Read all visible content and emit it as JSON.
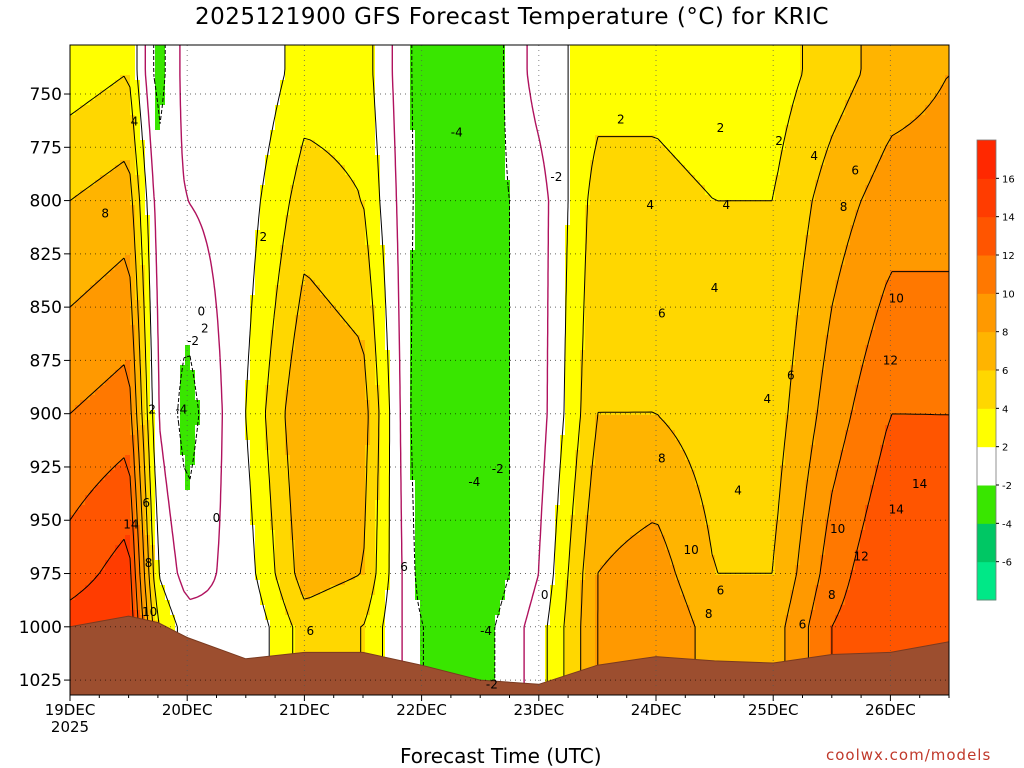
{
  "chart_data": {
    "type": "heatmap",
    "title": "2025121900 GFS Forecast Temperature (°C) for KRIC",
    "xlabel": "Forecast Time (UTC)",
    "ylabel": "",
    "x_ticks": [
      "19DEC",
      "20DEC",
      "21DEC",
      "22DEC",
      "23DEC",
      "24DEC",
      "25DEC",
      "26DEC"
    ],
    "x_year_label": "2025",
    "y_ticks": [
      750,
      775,
      800,
      825,
      850,
      875,
      900,
      925,
      950,
      975,
      1000,
      1025
    ],
    "y_range": [
      727,
      1032
    ],
    "x_range_days": [
      0,
      7.5
    ],
    "colorbar": {
      "levels": [
        -8,
        -6,
        -4,
        -2,
        2,
        4,
        6,
        8,
        10,
        12,
        14,
        16,
        18
      ],
      "labels": [
        "-6",
        "-4",
        "-2",
        "2",
        "4",
        "6",
        "8",
        "10",
        "12",
        "14",
        "16"
      ],
      "colors": [
        "#00e887",
        "#00c764",
        "#39e600",
        "#ffffff",
        "#ffff00",
        "#ffd700",
        "#ffb400",
        "#ff9900",
        "#ff7800",
        "#ff5500",
        "#ff3c00",
        "#ff2800"
      ]
    },
    "columns": [
      {
        "day": 0.0,
        "pressures": [
          740,
          800,
          900,
          975,
          1000
        ],
        "temps": [
          3,
          6,
          10,
          13,
          15
        ]
      },
      {
        "day": 0.5,
        "pressures": [
          740,
          800,
          900,
          975,
          1000
        ],
        "temps": [
          4,
          7,
          11,
          15,
          16
        ]
      },
      {
        "day": 0.75,
        "pressures": [
          740,
          800,
          900,
          975,
          1000
        ],
        "temps": [
          -3,
          -1,
          0,
          2,
          4
        ]
      },
      {
        "day": 1.0,
        "pressures": [
          740,
          800,
          900,
          975,
          1000
        ],
        "temps": [
          1,
          0,
          -3,
          -1,
          1
        ]
      },
      {
        "day": 1.5,
        "pressures": [
          740,
          800,
          900,
          975,
          1000
        ],
        "temps": [
          0,
          1,
          2,
          1,
          0
        ]
      },
      {
        "day": 2.0,
        "pressures": [
          740,
          800,
          900,
          975,
          1000
        ],
        "temps": [
          3,
          5,
          8,
          7,
          5
        ]
      },
      {
        "day": 2.5,
        "pressures": [
          740,
          800,
          900,
          975,
          1000
        ],
        "temps": [
          3,
          4,
          7,
          6,
          4
        ]
      },
      {
        "day": 3.0,
        "pressures": [
          740,
          800,
          900,
          975,
          1000
        ],
        "temps": [
          -3,
          -3,
          -4,
          -3,
          -2
        ]
      },
      {
        "day": 3.5,
        "pressures": [
          740,
          800,
          900,
          975,
          1000
        ],
        "temps": [
          -4,
          -3,
          -3,
          -4,
          -3
        ]
      },
      {
        "day": 4.0,
        "pressures": [
          740,
          800,
          900,
          975,
          1000
        ],
        "temps": [
          1,
          -1,
          -1,
          0,
          1
        ]
      },
      {
        "day": 4.5,
        "pressures": [
          740,
          800,
          900,
          975,
          1000
        ],
        "temps": [
          3,
          5,
          6,
          8,
          8
        ]
      },
      {
        "day": 5.0,
        "pressures": [
          740,
          800,
          900,
          975,
          1000
        ],
        "temps": [
          3,
          5,
          6,
          9,
          10
        ]
      },
      {
        "day": 5.5,
        "pressures": [
          740,
          800,
          900,
          975,
          1000
        ],
        "temps": [
          2,
          4,
          5,
          6,
          7
        ]
      },
      {
        "day": 6.0,
        "pressures": [
          740,
          800,
          900,
          975,
          1000
        ],
        "temps": [
          3,
          4,
          5,
          6,
          7
        ]
      },
      {
        "day": 6.5,
        "pressures": [
          740,
          800,
          900,
          975,
          1000
        ],
        "temps": [
          5,
          7,
          9,
          11,
          12
        ]
      },
      {
        "day": 7.0,
        "pressures": [
          740,
          800,
          900,
          975,
          1000
        ],
        "temps": [
          7,
          9,
          12,
          14,
          14
        ]
      },
      {
        "day": 7.5,
        "pressures": [
          740,
          800,
          900,
          975,
          1000
        ],
        "temps": [
          8,
          9,
          12,
          13,
          13
        ]
      }
    ],
    "surface_pressure": [
      {
        "day": 0.0,
        "p": 1000
      },
      {
        "day": 0.5,
        "p": 995
      },
      {
        "day": 0.75,
        "p": 998
      },
      {
        "day": 1.0,
        "p": 1005
      },
      {
        "day": 1.5,
        "p": 1015
      },
      {
        "day": 2.0,
        "p": 1012
      },
      {
        "day": 2.5,
        "p": 1012
      },
      {
        "day": 3.0,
        "p": 1018
      },
      {
        "day": 3.5,
        "p": 1025
      },
      {
        "day": 4.0,
        "p": 1027
      },
      {
        "day": 4.5,
        "p": 1018
      },
      {
        "day": 5.0,
        "p": 1014
      },
      {
        "day": 5.5,
        "p": 1016
      },
      {
        "day": 6.0,
        "p": 1017
      },
      {
        "day": 6.5,
        "p": 1013
      },
      {
        "day": 7.0,
        "p": 1012
      },
      {
        "day": 7.5,
        "p": 1007
      }
    ],
    "contour_labels": [
      {
        "day": 0.55,
        "p": 763,
        "text": "4"
      },
      {
        "day": 0.3,
        "p": 806,
        "text": "8"
      },
      {
        "day": 0.7,
        "p": 898,
        "text": "2"
      },
      {
        "day": 0.65,
        "p": 942,
        "text": "6"
      },
      {
        "day": 0.52,
        "p": 952,
        "text": "14"
      },
      {
        "day": 0.67,
        "p": 970,
        "text": "8"
      },
      {
        "day": 0.68,
        "p": 993,
        "text": "10"
      },
      {
        "day": 1.12,
        "p": 852,
        "text": "0"
      },
      {
        "day": 1.15,
        "p": 860,
        "text": "2"
      },
      {
        "day": 1.05,
        "p": 866,
        "text": "-2"
      },
      {
        "day": 0.95,
        "p": 898,
        "text": "-4"
      },
      {
        "day": 1.25,
        "p": 949,
        "text": "0"
      },
      {
        "day": 1.65,
        "p": 817,
        "text": "2"
      },
      {
        "day": 2.05,
        "p": 1002,
        "text": "6"
      },
      {
        "day": 2.85,
        "p": 972,
        "text": "6"
      },
      {
        "day": 3.3,
        "p": 768,
        "text": "-4"
      },
      {
        "day": 4.15,
        "p": 789,
        "text": "-2"
      },
      {
        "day": 3.65,
        "p": 926,
        "text": "-2"
      },
      {
        "day": 3.45,
        "p": 932,
        "text": "-4"
      },
      {
        "day": 3.55,
        "p": 1002,
        "text": "-4"
      },
      {
        "day": 3.6,
        "p": 1027,
        "text": "-2"
      },
      {
        "day": 4.05,
        "p": 985,
        "text": "0"
      },
      {
        "day": 4.7,
        "p": 762,
        "text": "2"
      },
      {
        "day": 4.95,
        "p": 802,
        "text": "4"
      },
      {
        "day": 5.05,
        "p": 853,
        "text": "6"
      },
      {
        "day": 5.05,
        "p": 921,
        "text": "8"
      },
      {
        "day": 5.3,
        "p": 964,
        "text": "10"
      },
      {
        "day": 5.55,
        "p": 983,
        "text": "6"
      },
      {
        "day": 5.45,
        "p": 994,
        "text": "8"
      },
      {
        "day": 5.5,
        "p": 841,
        "text": "4"
      },
      {
        "day": 5.55,
        "p": 766,
        "text": "2"
      },
      {
        "day": 5.6,
        "p": 802,
        "text": "4"
      },
      {
        "day": 5.95,
        "p": 893,
        "text": "4"
      },
      {
        "day": 5.7,
        "p": 936,
        "text": "4"
      },
      {
        "day": 6.15,
        "p": 882,
        "text": "6"
      },
      {
        "day": 6.05,
        "p": 772,
        "text": "2"
      },
      {
        "day": 6.35,
        "p": 779,
        "text": "4"
      },
      {
        "day": 6.7,
        "p": 786,
        "text": "6"
      },
      {
        "day": 6.6,
        "p": 803,
        "text": "8"
      },
      {
        "day": 7.05,
        "p": 846,
        "text": "10"
      },
      {
        "day": 7.0,
        "p": 875,
        "text": "12"
      },
      {
        "day": 7.05,
        "p": 945,
        "text": "14"
      },
      {
        "day": 7.25,
        "p": 933,
        "text": "14"
      },
      {
        "day": 6.25,
        "p": 999,
        "text": "6"
      },
      {
        "day": 6.5,
        "p": 985,
        "text": "8"
      },
      {
        "day": 6.55,
        "p": 954,
        "text": "10"
      },
      {
        "day": 6.75,
        "p": 967,
        "text": "12"
      }
    ]
  },
  "credit": "coolwx.com/models"
}
